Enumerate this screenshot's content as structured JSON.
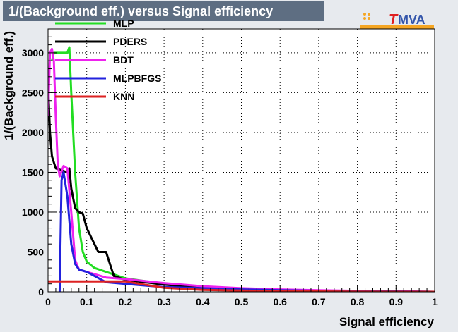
{
  "title": "1/(Background eff.) versus Signal efficiency",
  "logo": {
    "text_t": "T",
    "text_rest": "MVA"
  },
  "colors": {
    "background": "#e7eaee",
    "title_bg": "#5e6e82",
    "title_text": "#ffffff"
  },
  "chart_data": {
    "type": "line",
    "xlabel": "Signal efficiency",
    "ylabel": "1/(Background eff.)",
    "xlim": [
      0,
      1
    ],
    "ylim": [
      0,
      3300
    ],
    "x_ticks": [
      0,
      0.1,
      0.2,
      0.3,
      0.4,
      0.5,
      0.6,
      0.7,
      0.8,
      0.9,
      1
    ],
    "x_tick_labels": [
      "0",
      "0.1",
      "0.2",
      "0.3",
      "0.4",
      "0.5",
      "0.6",
      "0.7",
      "0.8",
      "0.9",
      "1"
    ],
    "y_ticks": [
      0,
      500,
      1000,
      1500,
      2000,
      2500,
      3000
    ],
    "y_tick_labels": [
      "0",
      "500",
      "1000",
      "1500",
      "2000",
      "2500",
      "3000"
    ],
    "grid": true,
    "legend_position": "top-left",
    "series": [
      {
        "name": "MLP",
        "color": "#22dd22",
        "points": [
          [
            0.01,
            2900
          ],
          [
            0.015,
            3000
          ],
          [
            0.05,
            3000
          ],
          [
            0.055,
            3070
          ],
          [
            0.06,
            2500
          ],
          [
            0.07,
            1500
          ],
          [
            0.08,
            800
          ],
          [
            0.09,
            500
          ],
          [
            0.1,
            380
          ],
          [
            0.12,
            300
          ],
          [
            0.15,
            250
          ],
          [
            0.2,
            170
          ],
          [
            0.3,
            100
          ],
          [
            0.4,
            60
          ],
          [
            0.5,
            35
          ],
          [
            0.6,
            20
          ],
          [
            0.7,
            12
          ],
          [
            0.8,
            7
          ],
          [
            0.9,
            3
          ],
          [
            1,
            0
          ]
        ]
      },
      {
        "name": "PDERS",
        "color": "#000000",
        "points": [
          [
            0,
            2600
          ],
          [
            0.005,
            2000
          ],
          [
            0.01,
            1700
          ],
          [
            0.02,
            1550
          ],
          [
            0.05,
            1500
          ],
          [
            0.055,
            1550
          ],
          [
            0.06,
            1300
          ],
          [
            0.07,
            1050
          ],
          [
            0.08,
            1000
          ],
          [
            0.09,
            980
          ],
          [
            0.1,
            800
          ],
          [
            0.12,
            600
          ],
          [
            0.13,
            500
          ],
          [
            0.15,
            500
          ],
          [
            0.17,
            200
          ],
          [
            0.2,
            150
          ],
          [
            0.25,
            120
          ],
          [
            0.3,
            90
          ],
          [
            0.4,
            50
          ],
          [
            0.5,
            30
          ],
          [
            0.6,
            18
          ],
          [
            0.7,
            10
          ],
          [
            0.8,
            5
          ],
          [
            1,
            0
          ]
        ]
      },
      {
        "name": "BDT",
        "color": "#ee22ee",
        "points": [
          [
            0,
            2200
          ],
          [
            0.005,
            3000
          ],
          [
            0.01,
            3050
          ],
          [
            0.015,
            2900
          ],
          [
            0.02,
            2200
          ],
          [
            0.025,
            1600
          ],
          [
            0.03,
            1450
          ],
          [
            0.04,
            1580
          ],
          [
            0.05,
            1550
          ],
          [
            0.06,
            1000
          ],
          [
            0.07,
            400
          ],
          [
            0.08,
            280
          ],
          [
            0.1,
            250
          ],
          [
            0.15,
            180
          ],
          [
            0.2,
            160
          ],
          [
            0.3,
            110
          ],
          [
            0.4,
            70
          ],
          [
            0.5,
            45
          ],
          [
            0.6,
            30
          ],
          [
            0.7,
            20
          ],
          [
            0.8,
            12
          ],
          [
            0.9,
            6
          ],
          [
            1,
            0
          ]
        ]
      },
      {
        "name": "MLPBFGS",
        "color": "#2222dd",
        "points": [
          [
            0.03,
            0
          ],
          [
            0.035,
            1400
          ],
          [
            0.04,
            1500
          ],
          [
            0.05,
            1200
          ],
          [
            0.06,
            600
          ],
          [
            0.07,
            350
          ],
          [
            0.08,
            280
          ],
          [
            0.1,
            250
          ],
          [
            0.12,
            200
          ],
          [
            0.15,
            120
          ],
          [
            0.2,
            100
          ],
          [
            0.3,
            60
          ],
          [
            0.4,
            45
          ],
          [
            0.5,
            30
          ],
          [
            0.6,
            20
          ],
          [
            0.7,
            12
          ],
          [
            0.8,
            8
          ],
          [
            0.9,
            4
          ],
          [
            1,
            0
          ]
        ]
      },
      {
        "name": "KNN",
        "color": "#dd2222",
        "points": [
          [
            0,
            130
          ],
          [
            0.2,
            130
          ],
          [
            0.3,
            50
          ],
          [
            0.4,
            25
          ],
          [
            0.5,
            15
          ],
          [
            0.6,
            8
          ],
          [
            0.7,
            4
          ],
          [
            0.8,
            2
          ],
          [
            1,
            0
          ]
        ]
      }
    ]
  }
}
